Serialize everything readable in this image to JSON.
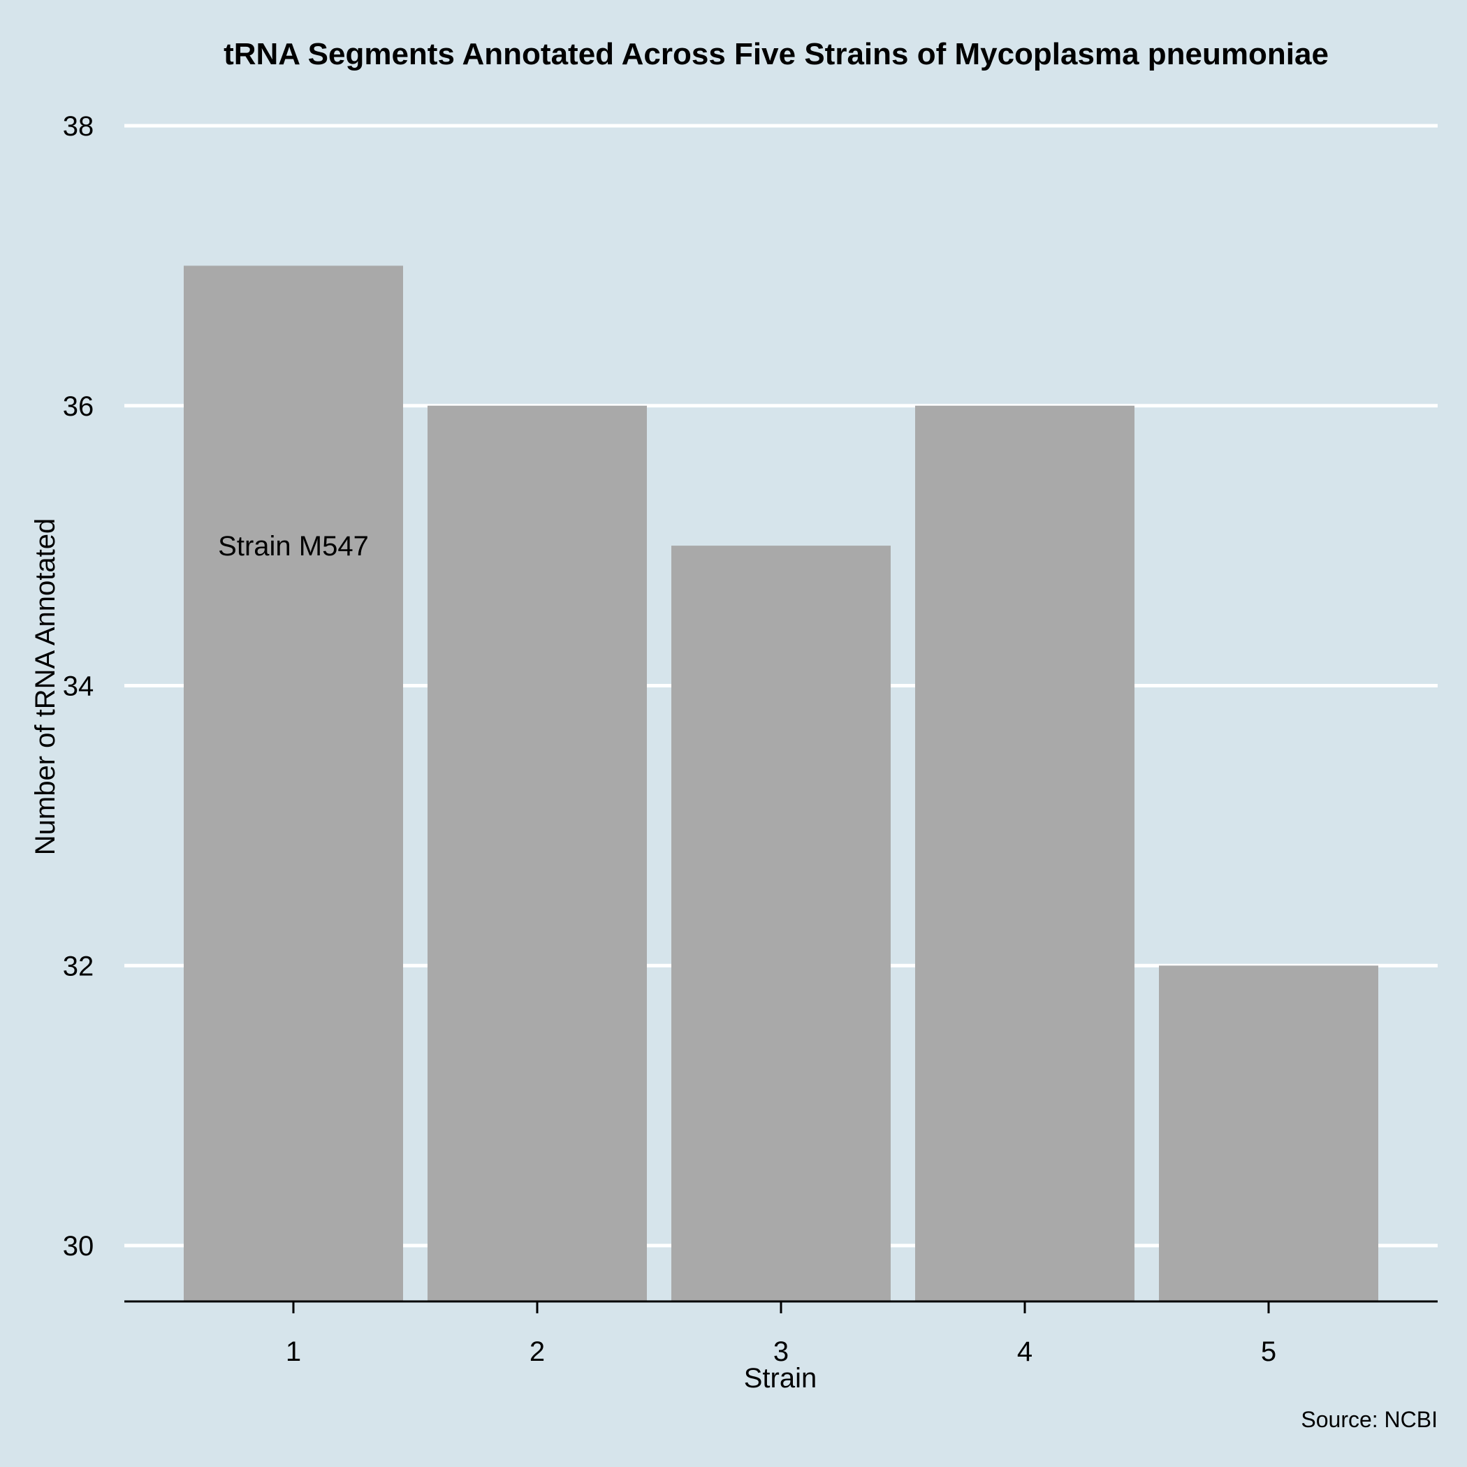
{
  "chart_data": {
    "type": "bar",
    "title": "tRNA Segments Annotated Across Five Strains of Mycoplasma pneumoniae",
    "xlabel": "Strain",
    "ylabel": "Number of tRNA Annotated",
    "caption": "Source: NCBI",
    "categories": [
      "1",
      "2",
      "3",
      "4",
      "5"
    ],
    "values": [
      37,
      36,
      35,
      36,
      32
    ],
    "ylim": [
      29.6,
      38.2
    ],
    "yticks": [
      "30",
      "32",
      "34",
      "36",
      "38"
    ],
    "annotation": {
      "text": "Strain M547",
      "x": "1",
      "y": 35
    },
    "grid": "horizontal",
    "colors": {
      "background": "#d6e4eb",
      "bar": "#a9a9a9",
      "grid": "#ffffff",
      "axis": "#000000"
    }
  }
}
